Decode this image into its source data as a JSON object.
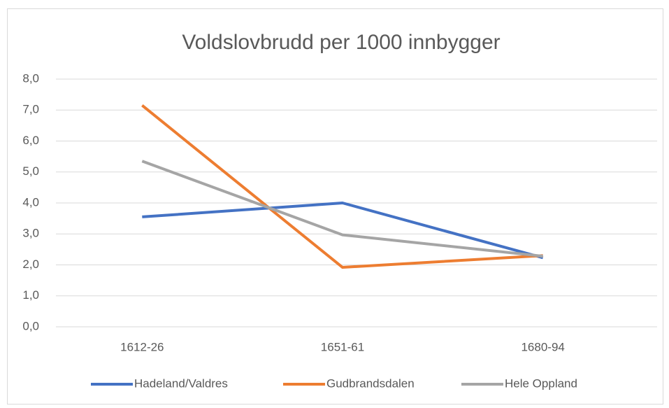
{
  "chart_data": {
    "type": "line",
    "title": "Voldslovbrudd per 1000 innbygger",
    "categories": [
      "1612-26",
      "1651-61",
      "1680-94"
    ],
    "series": [
      {
        "name": "Hadeland/Valdres",
        "color": "#4472c4",
        "values": [
          3.55,
          4.0,
          2.23
        ]
      },
      {
        "name": "Gudbrandsdalen",
        "color": "#ed7d31",
        "values": [
          7.15,
          1.92,
          2.3
        ]
      },
      {
        "name": "Hele Oppland",
        "color": "#a5a5a5",
        "values": [
          5.35,
          2.97,
          2.28
        ]
      }
    ],
    "ylim": [
      0,
      8
    ],
    "yticks": [
      {
        "value": 0,
        "label": "0,0"
      },
      {
        "value": 1,
        "label": "1,0"
      },
      {
        "value": 2,
        "label": "2,0"
      },
      {
        "value": 3,
        "label": "3,0"
      },
      {
        "value": 4,
        "label": "4,0"
      },
      {
        "value": 5,
        "label": "5,0"
      },
      {
        "value": 6,
        "label": "6,0"
      },
      {
        "value": 7,
        "label": "7,0"
      },
      {
        "value": 8,
        "label": "8,0"
      }
    ],
    "grid": true,
    "legend": "bottom"
  }
}
